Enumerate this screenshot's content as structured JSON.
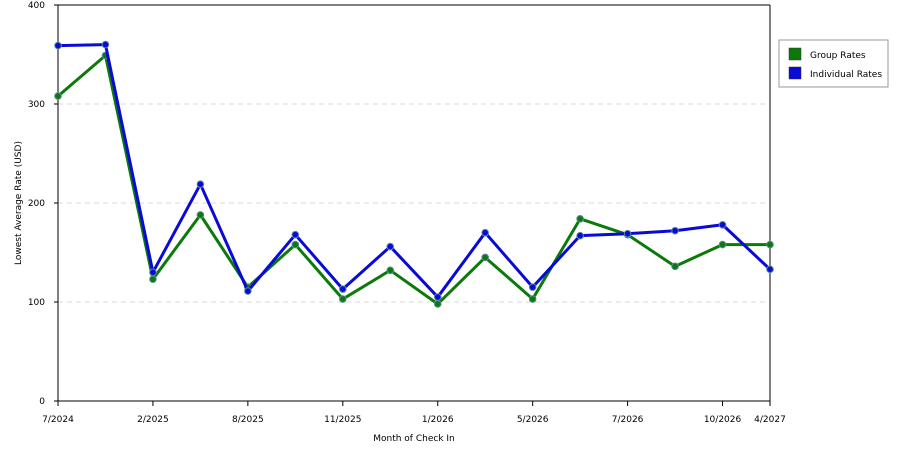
{
  "chart_data": {
    "type": "line",
    "xlabel": "Month of Check In",
    "ylabel": "Lowest Average Rate (USD)",
    "ylim": [
      0,
      400
    ],
    "y_ticks": [
      "0",
      "100",
      "200",
      "300",
      "400"
    ],
    "grid": "horizontal dashed",
    "legend_position": "right",
    "x_tick_labels": [
      {
        "i": 0,
        "label": "7/2024"
      },
      {
        "i": 2,
        "label": "2/2025"
      },
      {
        "i": 4,
        "label": "8/2025"
      },
      {
        "i": 6,
        "label": "11/2025"
      },
      {
        "i": 8,
        "label": "1/2026"
      },
      {
        "i": 10,
        "label": "5/2026"
      },
      {
        "i": 12,
        "label": "7/2026"
      },
      {
        "i": 14,
        "label": "10/2026"
      },
      {
        "i": 15,
        "label": "4/2027"
      }
    ],
    "series": [
      {
        "name": "Group Rates",
        "color": "#0b7a0b",
        "values": [
          308,
          349,
          123,
          188,
          115,
          158,
          103,
          132,
          98,
          145,
          103,
          184,
          168,
          136,
          158,
          158
        ]
      },
      {
        "name": "Individual Rates",
        "color": "#0a0ad6",
        "values": [
          359,
          360,
          130,
          219,
          111,
          168,
          113,
          156,
          105,
          170,
          115,
          167,
          169,
          172,
          178,
          133
        ]
      }
    ]
  }
}
